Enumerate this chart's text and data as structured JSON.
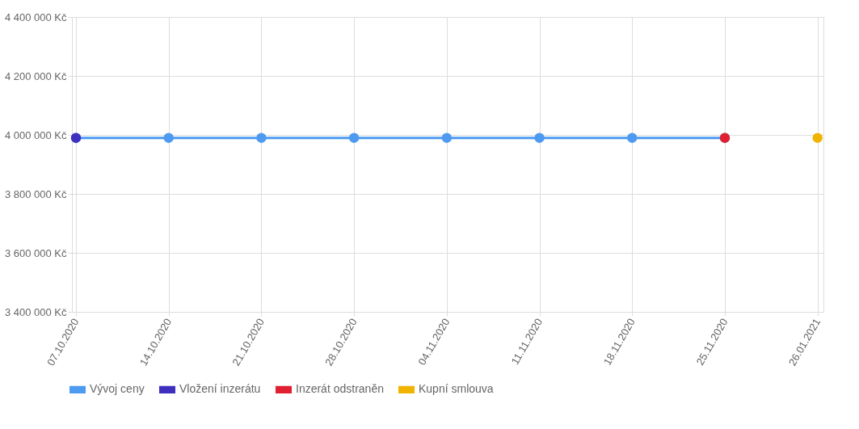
{
  "chart_data": {
    "type": "line",
    "categories": [
      "07.10.2020",
      "14.10.2020",
      "21.10.2020",
      "28.10.2020",
      "04.11.2020",
      "11.11.2020",
      "18.11.2020",
      "25.11.2020",
      "26.01.2021"
    ],
    "series": [
      {
        "name": "Vývoj ceny",
        "color": "#4e9af1",
        "marker": "circle",
        "values": [
          3990000,
          3990000,
          3990000,
          3990000,
          3990000,
          3990000,
          3990000,
          3990000,
          null
        ]
      },
      {
        "name": "Vložení inzerátu",
        "type": "scatter",
        "color": "#3f2fbf",
        "marker": "circle",
        "values": [
          3990000,
          null,
          null,
          null,
          null,
          null,
          null,
          null,
          null
        ]
      },
      {
        "name": "Inzerát odstraněn",
        "type": "scatter",
        "color": "#e02030",
        "marker": "circle",
        "values": [
          null,
          null,
          null,
          null,
          null,
          null,
          null,
          3990000,
          null
        ]
      },
      {
        "name": "Kupní smlouva",
        "type": "scatter",
        "color": "#f0b400",
        "marker": "circle",
        "values": [
          null,
          null,
          null,
          null,
          null,
          null,
          null,
          null,
          3990000
        ]
      }
    ],
    "ylim": [
      3400000,
      4400000
    ],
    "yticks": [
      {
        "value": 3400000,
        "label": "3 400 000 Kč"
      },
      {
        "value": 3600000,
        "label": "3 600 000 Kč"
      },
      {
        "value": 3800000,
        "label": "3 800 000 Kč"
      },
      {
        "value": 4000000,
        "label": "4 000 000 Kč"
      },
      {
        "value": 4200000,
        "label": "4 200 000 Kč"
      },
      {
        "value": 4400000,
        "label": "4 400 000 Kč"
      }
    ],
    "grid": true,
    "legend": "bottom"
  }
}
